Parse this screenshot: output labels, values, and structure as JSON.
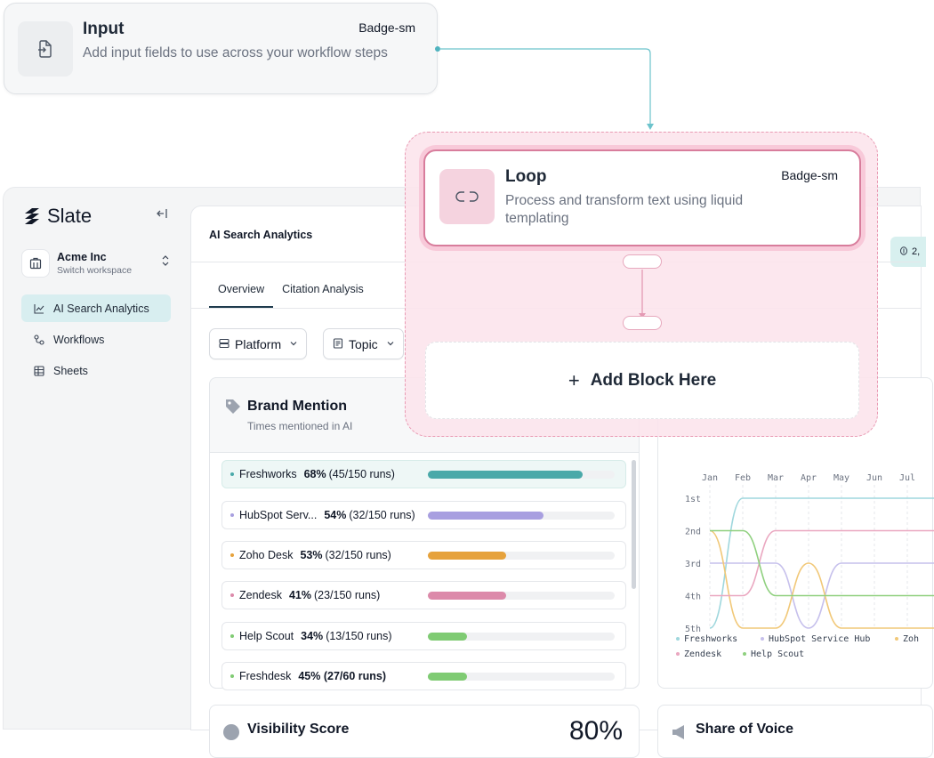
{
  "input_node": {
    "title": "Input",
    "badge": "Badge-sm",
    "description": "Add input fields to use across your workflow steps"
  },
  "loop_node": {
    "title": "Loop",
    "badge": "Badge-sm",
    "description": "Process and transform text using liquid templating"
  },
  "add_block": {
    "label": "Add Block Here"
  },
  "sidebar": {
    "brand": "Slate",
    "workspace": {
      "name": "Acme Inc",
      "sub": "Switch workspace"
    },
    "items": [
      {
        "label": "AI Search Analytics",
        "active": true
      },
      {
        "label": "Workflows"
      },
      {
        "label": "Sheets"
      }
    ]
  },
  "main": {
    "title": "AI Search Analytics",
    "chip_text": "2,",
    "tabs": [
      {
        "label": "Overview",
        "active": true
      },
      {
        "label": "Citation Analysis"
      }
    ],
    "filters": [
      {
        "label": "Platform"
      },
      {
        "label": "Topic"
      }
    ]
  },
  "brand_mention": {
    "title": "Brand Mention",
    "subtitle": "Times mentioned in AI",
    "rows": [
      {
        "name": "Freshworks",
        "pct": "68%",
        "runs": "(45/150 runs)",
        "fill": 0.83,
        "color": "#4aa9a9"
      },
      {
        "name": "HubSpot Serv...",
        "pct": "54%",
        "runs": "(32/150 runs)",
        "fill": 0.62,
        "color": "#a89fe0"
      },
      {
        "name": "Zoho Desk",
        "pct": "53%",
        "runs": "(32/150 runs)",
        "fill": 0.42,
        "color": "#e6a23c"
      },
      {
        "name": "Zendesk",
        "pct": "41%",
        "runs": "(23/150 runs)",
        "fill": 0.42,
        "color": "#dc8aaa"
      },
      {
        "name": "Help Scout",
        "pct": "34%",
        "runs": "(13/150 runs)",
        "fill": 0.21,
        "color": "#7fcb73"
      },
      {
        "name": "Freshdesk",
        "pct": "45% (27/60 runs)",
        "runs": "",
        "fill": 0.21,
        "color": "#7fcb73"
      }
    ]
  },
  "chart_data": {
    "type": "line",
    "x": [
      "Jan",
      "Feb",
      "Mar",
      "Apr",
      "May",
      "Jun",
      "Jul"
    ],
    "y_ticks": [
      "1st",
      "2nd",
      "3rd",
      "4th",
      "5th"
    ],
    "ylim": [
      1,
      5
    ],
    "y_inverted": true,
    "series": [
      {
        "name": "Freshworks",
        "color": "#9fd7dd",
        "values": [
          5,
          1,
          1,
          1,
          1,
          1,
          1
        ]
      },
      {
        "name": "HubSpot Service Hub",
        "color": "#c6c0ec",
        "values": [
          3,
          3,
          3,
          5,
          3,
          3,
          3
        ]
      },
      {
        "name": "Zoh",
        "color": "#f1c878",
        "values": [
          2,
          5,
          5,
          3,
          5,
          5,
          5
        ]
      },
      {
        "name": "Zendesk",
        "color": "#eaa7c0",
        "values": [
          4,
          4,
          2,
          2,
          2,
          2,
          2
        ]
      },
      {
        "name": "Help Scout",
        "color": "#8fd07f",
        "values": [
          2,
          2,
          4,
          4,
          4,
          4,
          4
        ]
      }
    ],
    "legend_position": "bottom"
  },
  "visibility": {
    "title": "Visibility Score",
    "value": "80%"
  },
  "share_of_voice": {
    "title": "Share of Voice"
  }
}
